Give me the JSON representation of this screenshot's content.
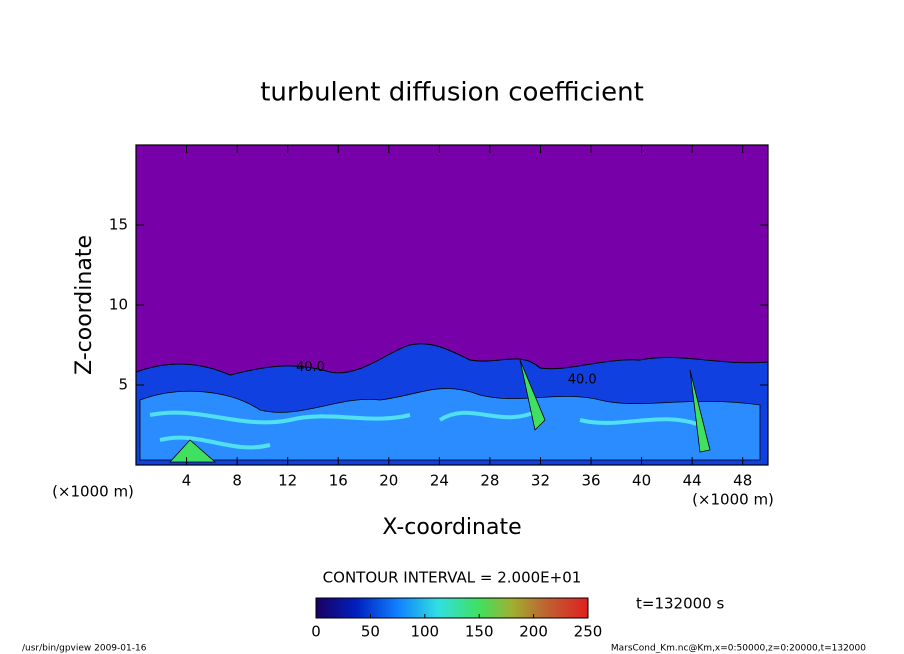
{
  "chart_data": {
    "type": "contour",
    "title": "turbulent diffusion coefficient",
    "x_label": "X-coordinate",
    "y_label": "Z-coordinate",
    "x_unit": "(×1000 m)",
    "y_unit": "(×1000 m)",
    "xlim": [
      0,
      50
    ],
    "xticks": [
      4,
      8,
      12,
      16,
      20,
      24,
      28,
      32,
      36,
      40,
      44,
      48
    ],
    "ylim": [
      0,
      20
    ],
    "yticks": [
      5,
      10,
      15
    ],
    "contour_interval": "CONTOUR INTERVAL = 2.000E+01",
    "time_label": "t=132000 s",
    "clim": [
      0,
      250
    ],
    "cticks": [
      0,
      50,
      100,
      150,
      200,
      250
    ],
    "annotations": [
      {
        "text": "40.0",
        "x": 13.8,
        "y": 6.1
      },
      {
        "text": "40.0",
        "x": 35.3,
        "y": 5.3
      }
    ],
    "footer_left": "/usr/bin/gpview  2009-01-16",
    "footer_right": "MarsCond_Km.nc@Km,x=0:50000,z=0:20000,t=132000"
  }
}
